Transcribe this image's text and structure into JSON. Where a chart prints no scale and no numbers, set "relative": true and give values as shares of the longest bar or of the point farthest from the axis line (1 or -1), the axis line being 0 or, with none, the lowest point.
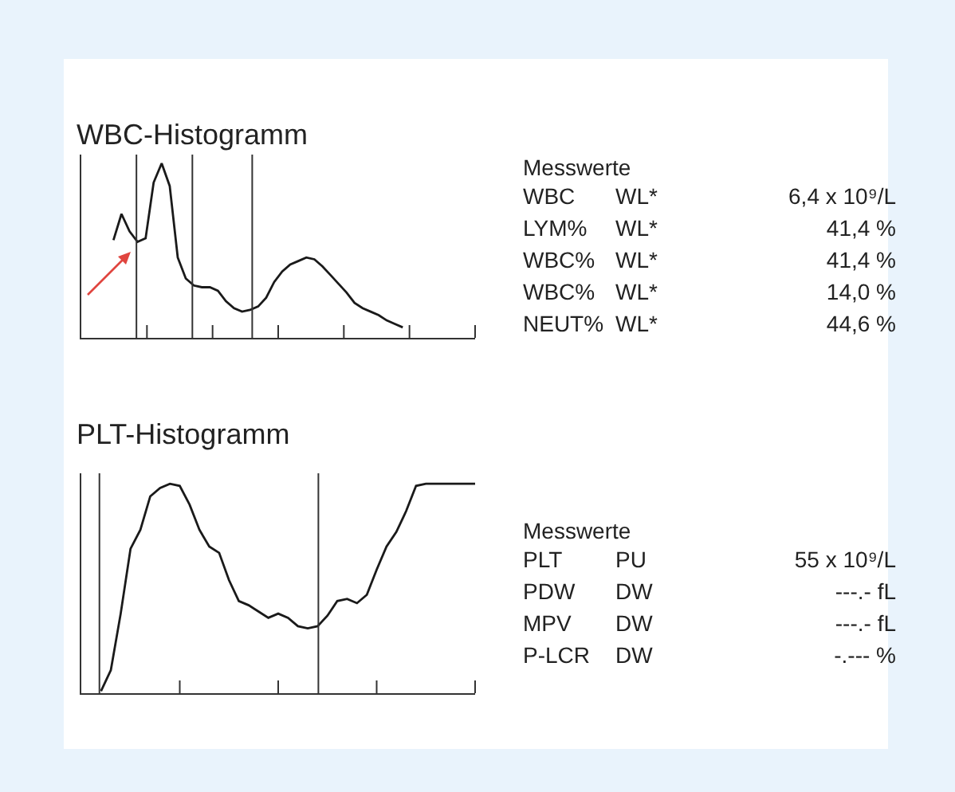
{
  "chart_data": [
    {
      "type": "line",
      "title": "WBC-Histogramm",
      "relative": true,
      "color": "#1a1a1a",
      "categories": [
        null,
        null,
        null,
        null,
        null,
        null,
        null,
        null,
        null,
        null,
        null,
        null,
        null,
        null,
        null,
        null,
        null,
        null,
        null,
        null,
        null,
        null,
        null,
        null,
        null,
        null,
        null,
        null,
        null,
        null,
        null,
        null,
        null,
        null,
        null,
        null,
        null
      ],
      "values": [
        0.56,
        0.71,
        0.61,
        0.55,
        0.57,
        0.89,
        1,
        0.87,
        0.46,
        0.34,
        0.3,
        0.29,
        0.29,
        0.27,
        0.21,
        0.17,
        0.15,
        0.16,
        0.18,
        0.23,
        0.32,
        0.38,
        0.42,
        0.44,
        0.46,
        0.45,
        0.41,
        0.36,
        0.31,
        0.26,
        0.2,
        0.17,
        0.15,
        0.13,
        0.1,
        0.08,
        0.06
      ]
    },
    {
      "type": "other",
      "title": "Messwerte",
      "annotations": [
        "WBC",
        "WL*",
        "6,4 x 10⁹/L",
        "LYM%",
        "WL*",
        "41,4 %",
        "WBC%",
        "WL*",
        "41,4 %",
        "WBC%",
        "WL*",
        "14,0 %",
        "NEUT%",
        "WL*",
        "44,6 %"
      ]
    },
    {
      "type": "line",
      "title": "PLT-Histogramm",
      "relative": true,
      "color": "#1a1a1a",
      "categories": [
        null,
        null,
        null,
        null,
        null,
        null,
        null,
        null,
        null,
        null,
        null,
        null,
        null,
        null,
        null,
        null,
        null,
        null,
        null,
        null,
        null,
        null,
        null,
        null,
        null,
        null,
        null,
        null,
        null,
        null,
        null,
        null,
        null,
        null,
        null,
        null,
        null,
        null,
        null
      ],
      "values": [
        0.01,
        0.11,
        0.38,
        0.69,
        0.78,
        0.94,
        0.98,
        1,
        0.99,
        0.9,
        0.78,
        0.7,
        0.67,
        0.54,
        0.44,
        0.42,
        0.39,
        0.36,
        0.38,
        0.36,
        0.32,
        0.31,
        0.32,
        0.37,
        0.44,
        0.45,
        0.43,
        0.47,
        0.59,
        0.7,
        0.77,
        0.87,
        0.99,
        1,
        1,
        1,
        1,
        1,
        1
      ]
    },
    {
      "type": "other",
      "title": "Messwerte",
      "annotations": [
        "PLT",
        "PU",
        "55 x 10⁹/L",
        "PDW",
        "DW",
        "---.- fL",
        "MPV",
        "DW",
        "---.- fL",
        "P-LCR",
        "DW",
        "-.--- %"
      ]
    }
  ]
}
